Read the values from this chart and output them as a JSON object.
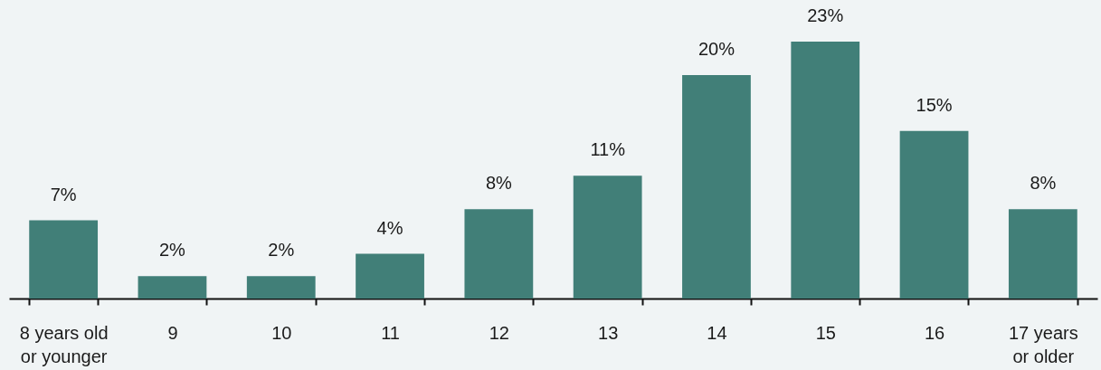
{
  "chart_data": {
    "type": "bar",
    "categories": [
      "8 years old or younger",
      "9",
      "10",
      "11",
      "12",
      "13",
      "14",
      "15",
      "16",
      "17 years or older"
    ],
    "values": [
      7,
      2,
      2,
      4,
      8,
      11,
      20,
      23,
      15,
      8
    ],
    "color": "#417f78",
    "value_labels": [
      "7%",
      "2%",
      "2%",
      "4%",
      "8%",
      "11%",
      "20%",
      "23%",
      "15%",
      "8%"
    ]
  }
}
